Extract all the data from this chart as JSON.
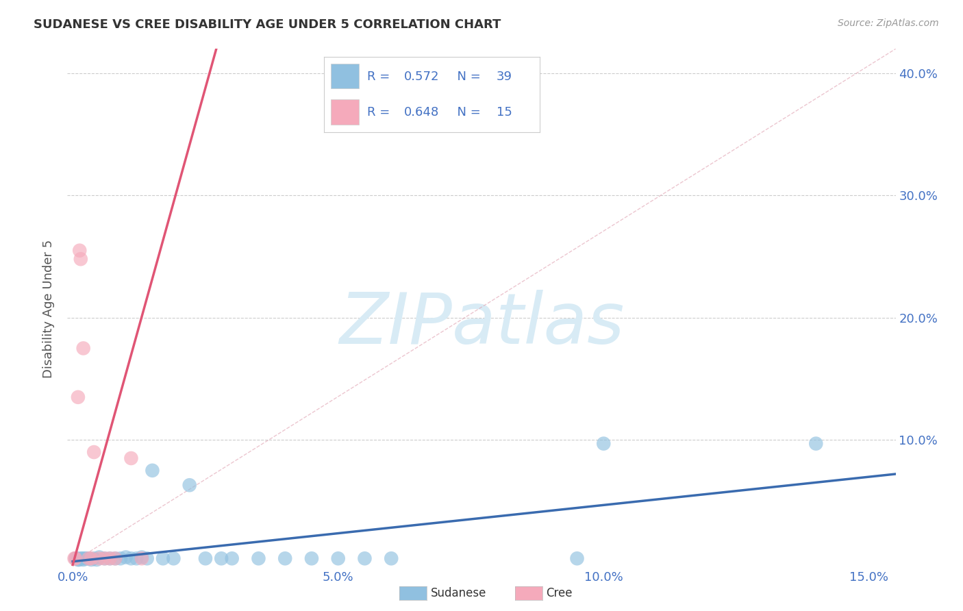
{
  "title": "SUDANESE VS CREE DISABILITY AGE UNDER 5 CORRELATION CHART",
  "source": "Source: ZipAtlas.com",
  "ylabel": "Disability Age Under 5",
  "xlim": [
    -0.001,
    0.155
  ],
  "ylim": [
    -0.005,
    0.42
  ],
  "xticks": [
    0.0,
    0.05,
    0.1,
    0.15
  ],
  "xticklabels": [
    "0.0%",
    "5.0%",
    "10.0%",
    "15.0%"
  ],
  "yticks_right": [
    0.1,
    0.2,
    0.3,
    0.4
  ],
  "yticklabels_right": [
    "10.0%",
    "20.0%",
    "30.0%",
    "40.0%"
  ],
  "yticks_left": [
    0.1,
    0.2,
    0.3,
    0.4
  ],
  "sudanese_R": 0.572,
  "sudanese_N": 39,
  "cree_R": 0.648,
  "cree_N": 15,
  "sudanese_color": "#90C0E0",
  "cree_color": "#F5AABB",
  "sudanese_line_color": "#3A6BAF",
  "cree_line_color": "#E05575",
  "diag_line_color": "#E8A0B0",
  "sudanese_x": [
    0.0005,
    0.001,
    0.0008,
    0.0012,
    0.0015,
    0.0018,
    0.002,
    0.0022,
    0.0025,
    0.003,
    0.0035,
    0.004,
    0.0045,
    0.005,
    0.006,
    0.007,
    0.008,
    0.009,
    0.01,
    0.011,
    0.012,
    0.013,
    0.014,
    0.015,
    0.017,
    0.019,
    0.022,
    0.025,
    0.028,
    0.03,
    0.035,
    0.04,
    0.045,
    0.05,
    0.055,
    0.06,
    0.095,
    0.1,
    0.14
  ],
  "sudanese_y": [
    0.003,
    0.002,
    0.003,
    0.002,
    0.003,
    0.003,
    0.002,
    0.003,
    0.003,
    0.003,
    0.002,
    0.003,
    0.002,
    0.004,
    0.003,
    0.003,
    0.003,
    0.003,
    0.004,
    0.003,
    0.003,
    0.004,
    0.003,
    0.075,
    0.003,
    0.003,
    0.063,
    0.003,
    0.003,
    0.003,
    0.003,
    0.003,
    0.003,
    0.003,
    0.003,
    0.003,
    0.003,
    0.097,
    0.097
  ],
  "cree_x": [
    0.0003,
    0.0005,
    0.001,
    0.0013,
    0.0015,
    0.002,
    0.003,
    0.0035,
    0.004,
    0.005,
    0.006,
    0.007,
    0.008,
    0.011,
    0.013
  ],
  "cree_y": [
    0.003,
    0.003,
    0.135,
    0.255,
    0.248,
    0.175,
    0.003,
    0.003,
    0.09,
    0.003,
    0.003,
    0.003,
    0.003,
    0.085,
    0.003
  ],
  "watermark_text": "ZIPatlas",
  "watermark_color": "#D8EBF5",
  "background_color": "#FFFFFF",
  "grid_color": "#CCCCCC",
  "tick_color": "#4472C4",
  "title_color": "#333333",
  "source_color": "#999999",
  "ylabel_color": "#555555",
  "legend_box_color": "#F5F5F5",
  "legend_border_color": "#DDDDDD"
}
